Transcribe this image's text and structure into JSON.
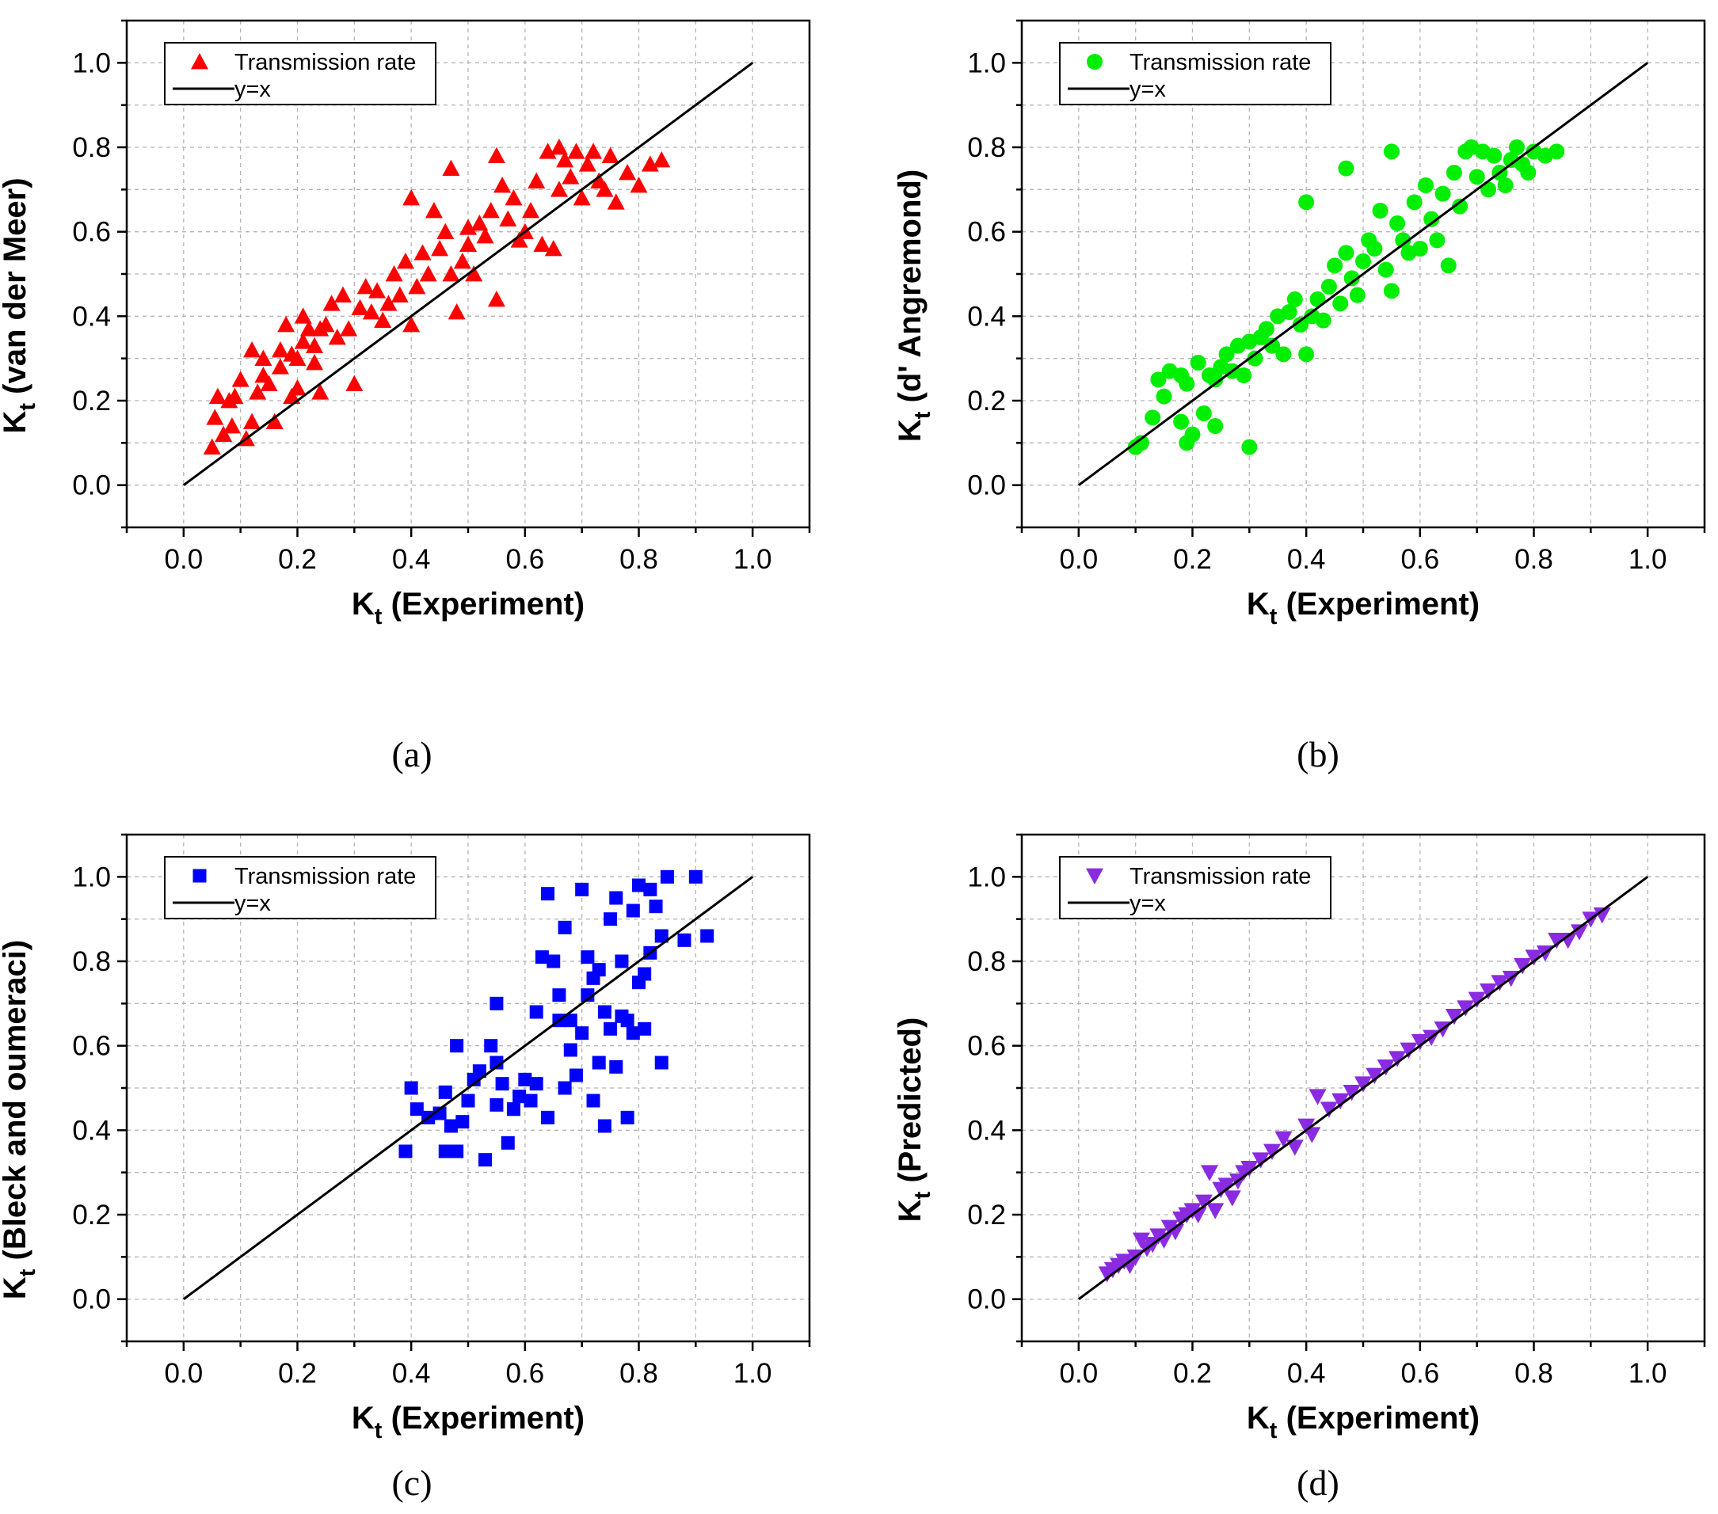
{
  "figure": {
    "panels": [
      "(a)",
      "(b)",
      "(c)",
      "(d)"
    ]
  },
  "colors": {
    "red": "#ff0000",
    "green": "#00ee00",
    "blue": "#0000ff",
    "violet": "#8a2be2"
  },
  "chart_data": [
    {
      "type": "scatter",
      "panel_label": "(a)",
      "marker": "triangle-up",
      "color": "#ff0000",
      "xlabel": {
        "main": "K",
        "sub": "t",
        "rest": " (Experiment)"
      },
      "ylabel": {
        "main": "K",
        "sub": "t",
        "rest": " (van der Meer)"
      },
      "xlim": [
        -0.1,
        1.1
      ],
      "ylim": [
        -0.1,
        1.1
      ],
      "xticks": [
        "0.0",
        "0.2",
        "0.4",
        "0.6",
        "0.8",
        "1.0"
      ],
      "yticks": [
        "0.0",
        "0.2",
        "0.4",
        "0.6",
        "0.8",
        "1.0"
      ],
      "legend": [
        "Transmission rate",
        "y=x"
      ],
      "reference_line": {
        "name": "y=x",
        "x": [
          0,
          1
        ],
        "y": [
          0,
          1
        ]
      },
      "series": [
        {
          "name": "Transmission rate",
          "x": [
            0.05,
            0.055,
            0.06,
            0.07,
            0.08,
            0.085,
            0.09,
            0.1,
            0.11,
            0.12,
            0.12,
            0.13,
            0.14,
            0.14,
            0.15,
            0.16,
            0.17,
            0.17,
            0.18,
            0.19,
            0.19,
            0.2,
            0.2,
            0.21,
            0.21,
            0.22,
            0.23,
            0.23,
            0.24,
            0.24,
            0.25,
            0.26,
            0.27,
            0.28,
            0.29,
            0.3,
            0.31,
            0.32,
            0.33,
            0.34,
            0.35,
            0.36,
            0.37,
            0.38,
            0.39,
            0.4,
            0.4,
            0.41,
            0.42,
            0.43,
            0.44,
            0.45,
            0.46,
            0.47,
            0.47,
            0.48,
            0.49,
            0.5,
            0.5,
            0.51,
            0.52,
            0.53,
            0.54,
            0.55,
            0.55,
            0.56,
            0.57,
            0.58,
            0.59,
            0.6,
            0.61,
            0.62,
            0.63,
            0.64,
            0.65,
            0.66,
            0.66,
            0.67,
            0.68,
            0.69,
            0.7,
            0.71,
            0.72,
            0.73,
            0.74,
            0.75,
            0.76,
            0.78,
            0.8,
            0.82,
            0.84
          ],
          "y": [
            0.09,
            0.16,
            0.21,
            0.12,
            0.2,
            0.14,
            0.21,
            0.25,
            0.11,
            0.32,
            0.15,
            0.22,
            0.26,
            0.3,
            0.24,
            0.15,
            0.28,
            0.32,
            0.38,
            0.21,
            0.31,
            0.23,
            0.3,
            0.4,
            0.34,
            0.37,
            0.29,
            0.33,
            0.22,
            0.37,
            0.38,
            0.43,
            0.35,
            0.45,
            0.37,
            0.24,
            0.42,
            0.47,
            0.41,
            0.46,
            0.39,
            0.43,
            0.5,
            0.45,
            0.53,
            0.68,
            0.38,
            0.47,
            0.55,
            0.5,
            0.65,
            0.56,
            0.6,
            0.75,
            0.5,
            0.41,
            0.53,
            0.57,
            0.61,
            0.5,
            0.62,
            0.59,
            0.65,
            0.44,
            0.78,
            0.71,
            0.63,
            0.68,
            0.58,
            0.6,
            0.65,
            0.72,
            0.57,
            0.79,
            0.56,
            0.7,
            0.8,
            0.77,
            0.73,
            0.79,
            0.68,
            0.76,
            0.79,
            0.72,
            0.7,
            0.78,
            0.67,
            0.74,
            0.71,
            0.76,
            0.77
          ]
        }
      ]
    },
    {
      "type": "scatter",
      "panel_label": "(b)",
      "marker": "circle",
      "color": "#00ee00",
      "xlabel": {
        "main": "K",
        "sub": "t",
        "rest": " (Experiment)"
      },
      "ylabel": {
        "main": "K",
        "sub": "t",
        "rest": " (d' Angremond)"
      },
      "xlim": [
        -0.1,
        1.1
      ],
      "ylim": [
        -0.1,
        1.1
      ],
      "xticks": [
        "0.0",
        "0.2",
        "0.4",
        "0.6",
        "0.8",
        "1.0"
      ],
      "yticks": [
        "0.0",
        "0.2",
        "0.4",
        "0.6",
        "0.8",
        "1.0"
      ],
      "legend": [
        "Transmission rate",
        "y=x"
      ],
      "reference_line": {
        "name": "y=x",
        "x": [
          0,
          1
        ],
        "y": [
          0,
          1
        ]
      },
      "series": [
        {
          "name": "Transmission rate",
          "x": [
            0.1,
            0.11,
            0.13,
            0.14,
            0.15,
            0.16,
            0.18,
            0.18,
            0.19,
            0.19,
            0.2,
            0.21,
            0.22,
            0.23,
            0.24,
            0.24,
            0.25,
            0.26,
            0.27,
            0.28,
            0.29,
            0.3,
            0.3,
            0.31,
            0.32,
            0.33,
            0.34,
            0.35,
            0.36,
            0.37,
            0.38,
            0.39,
            0.4,
            0.4,
            0.41,
            0.42,
            0.43,
            0.44,
            0.45,
            0.46,
            0.47,
            0.47,
            0.48,
            0.49,
            0.5,
            0.51,
            0.52,
            0.53,
            0.54,
            0.55,
            0.55,
            0.56,
            0.57,
            0.58,
            0.59,
            0.6,
            0.61,
            0.62,
            0.63,
            0.64,
            0.65,
            0.66,
            0.67,
            0.68,
            0.69,
            0.7,
            0.71,
            0.72,
            0.73,
            0.74,
            0.75,
            0.76,
            0.77,
            0.78,
            0.79,
            0.8,
            0.82,
            0.84
          ],
          "y": [
            0.09,
            0.1,
            0.16,
            0.25,
            0.21,
            0.27,
            0.15,
            0.26,
            0.1,
            0.24,
            0.12,
            0.29,
            0.17,
            0.26,
            0.14,
            0.25,
            0.28,
            0.31,
            0.27,
            0.33,
            0.26,
            0.09,
            0.34,
            0.3,
            0.35,
            0.37,
            0.33,
            0.4,
            0.31,
            0.41,
            0.44,
            0.38,
            0.67,
            0.31,
            0.4,
            0.44,
            0.39,
            0.47,
            0.52,
            0.43,
            0.75,
            0.55,
            0.49,
            0.45,
            0.53,
            0.58,
            0.56,
            0.65,
            0.51,
            0.79,
            0.46,
            0.62,
            0.58,
            0.55,
            0.67,
            0.56,
            0.71,
            0.63,
            0.58,
            0.69,
            0.52,
            0.74,
            0.66,
            0.79,
            0.8,
            0.73,
            0.79,
            0.7,
            0.78,
            0.74,
            0.71,
            0.77,
            0.8,
            0.76,
            0.74,
            0.79,
            0.78,
            0.79
          ]
        }
      ]
    },
    {
      "type": "scatter",
      "panel_label": "(c)",
      "marker": "square",
      "color": "#0000ff",
      "xlabel": {
        "main": "K",
        "sub": "t",
        "rest": " (Experiment)"
      },
      "ylabel": {
        "main": "K",
        "sub": "t",
        "rest": " (Bleck and oumeraci)"
      },
      "xlim": [
        -0.1,
        1.1
      ],
      "ylim": [
        -0.1,
        1.1
      ],
      "xticks": [
        "0.0",
        "0.2",
        "0.4",
        "0.6",
        "0.8",
        "1.0"
      ],
      "yticks": [
        "0.0",
        "0.2",
        "0.4",
        "0.6",
        "0.8",
        "1.0"
      ],
      "legend": [
        "Transmission rate",
        "y=x"
      ],
      "reference_line": {
        "name": "y=x",
        "x": [
          0,
          1
        ],
        "y": [
          0,
          1
        ]
      },
      "series": [
        {
          "name": "Transmission rate",
          "x": [
            0.39,
            0.4,
            0.41,
            0.43,
            0.45,
            0.46,
            0.46,
            0.47,
            0.48,
            0.48,
            0.49,
            0.5,
            0.51,
            0.52,
            0.53,
            0.54,
            0.55,
            0.55,
            0.56,
            0.57,
            0.58,
            0.59,
            0.6,
            0.61,
            0.62,
            0.63,
            0.64,
            0.64,
            0.65,
            0.66,
            0.67,
            0.67,
            0.68,
            0.69,
            0.7,
            0.7,
            0.71,
            0.72,
            0.72,
            0.73,
            0.74,
            0.74,
            0.75,
            0.75,
            0.76,
            0.77,
            0.77,
            0.78,
            0.78,
            0.79,
            0.8,
            0.8,
            0.81,
            0.81,
            0.82,
            0.83,
            0.84,
            0.84,
            0.85,
            0.88,
            0.9,
            0.92,
            0.55,
            0.58,
            0.62,
            0.66,
            0.68,
            0.71,
            0.73,
            0.76,
            0.79,
            0.82
          ],
          "y": [
            0.35,
            0.5,
            0.45,
            0.43,
            0.44,
            0.35,
            0.49,
            0.41,
            0.6,
            0.35,
            0.42,
            0.47,
            0.52,
            0.54,
            0.33,
            0.6,
            0.7,
            0.46,
            0.51,
            0.37,
            0.45,
            0.48,
            0.52,
            0.47,
            0.68,
            0.81,
            0.43,
            0.96,
            0.8,
            0.72,
            0.5,
            0.88,
            0.66,
            0.53,
            0.97,
            0.63,
            0.81,
            0.76,
            0.47,
            0.56,
            0.41,
            0.68,
            0.9,
            0.64,
            0.95,
            0.8,
            0.67,
            0.66,
            0.43,
            0.92,
            0.75,
            0.98,
            0.77,
            0.64,
            0.97,
            0.93,
            0.56,
            0.86,
            1.0,
            0.85,
            1.0,
            0.86,
            0.56,
            0.45,
            0.51,
            0.66,
            0.59,
            0.72,
            0.78,
            0.55,
            0.63,
            0.82
          ]
        }
      ]
    },
    {
      "type": "scatter",
      "panel_label": "(d)",
      "marker": "triangle-down",
      "color": "#8a2be2",
      "xlabel": {
        "main": "K",
        "sub": "t",
        "rest": " (Experiment)"
      },
      "ylabel": {
        "main": "K",
        "sub": "t",
        "rest": " (Predicted)"
      },
      "xlim": [
        -0.1,
        1.1
      ],
      "ylim": [
        -0.1,
        1.1
      ],
      "xticks": [
        "0.0",
        "0.2",
        "0.4",
        "0.6",
        "0.8",
        "1.0"
      ],
      "yticks": [
        "0.0",
        "0.2",
        "0.4",
        "0.6",
        "0.8",
        "1.0"
      ],
      "legend": [
        "Transmission rate",
        "y=x"
      ],
      "reference_line": {
        "name": "y=x",
        "x": [
          0,
          1
        ],
        "y": [
          0,
          1
        ]
      },
      "series": [
        {
          "name": "Transmission rate",
          "x": [
            0.05,
            0.06,
            0.07,
            0.08,
            0.09,
            0.1,
            0.11,
            0.12,
            0.13,
            0.14,
            0.15,
            0.16,
            0.17,
            0.18,
            0.19,
            0.2,
            0.21,
            0.22,
            0.23,
            0.24,
            0.25,
            0.26,
            0.27,
            0.28,
            0.29,
            0.3,
            0.32,
            0.34,
            0.36,
            0.38,
            0.4,
            0.41,
            0.42,
            0.44,
            0.46,
            0.48,
            0.5,
            0.52,
            0.54,
            0.56,
            0.58,
            0.6,
            0.62,
            0.64,
            0.66,
            0.68,
            0.7,
            0.72,
            0.74,
            0.76,
            0.78,
            0.8,
            0.82,
            0.84,
            0.86,
            0.88,
            0.9,
            0.92
          ],
          "y": [
            0.06,
            0.07,
            0.08,
            0.09,
            0.08,
            0.1,
            0.14,
            0.12,
            0.13,
            0.15,
            0.14,
            0.17,
            0.16,
            0.19,
            0.2,
            0.21,
            0.2,
            0.23,
            0.3,
            0.21,
            0.26,
            0.27,
            0.24,
            0.28,
            0.3,
            0.31,
            0.33,
            0.35,
            0.38,
            0.36,
            0.41,
            0.39,
            0.48,
            0.45,
            0.47,
            0.49,
            0.51,
            0.53,
            0.55,
            0.57,
            0.59,
            0.61,
            0.62,
            0.64,
            0.67,
            0.69,
            0.71,
            0.73,
            0.75,
            0.76,
            0.79,
            0.81,
            0.82,
            0.85,
            0.85,
            0.87,
            0.9,
            0.91
          ]
        }
      ]
    }
  ]
}
